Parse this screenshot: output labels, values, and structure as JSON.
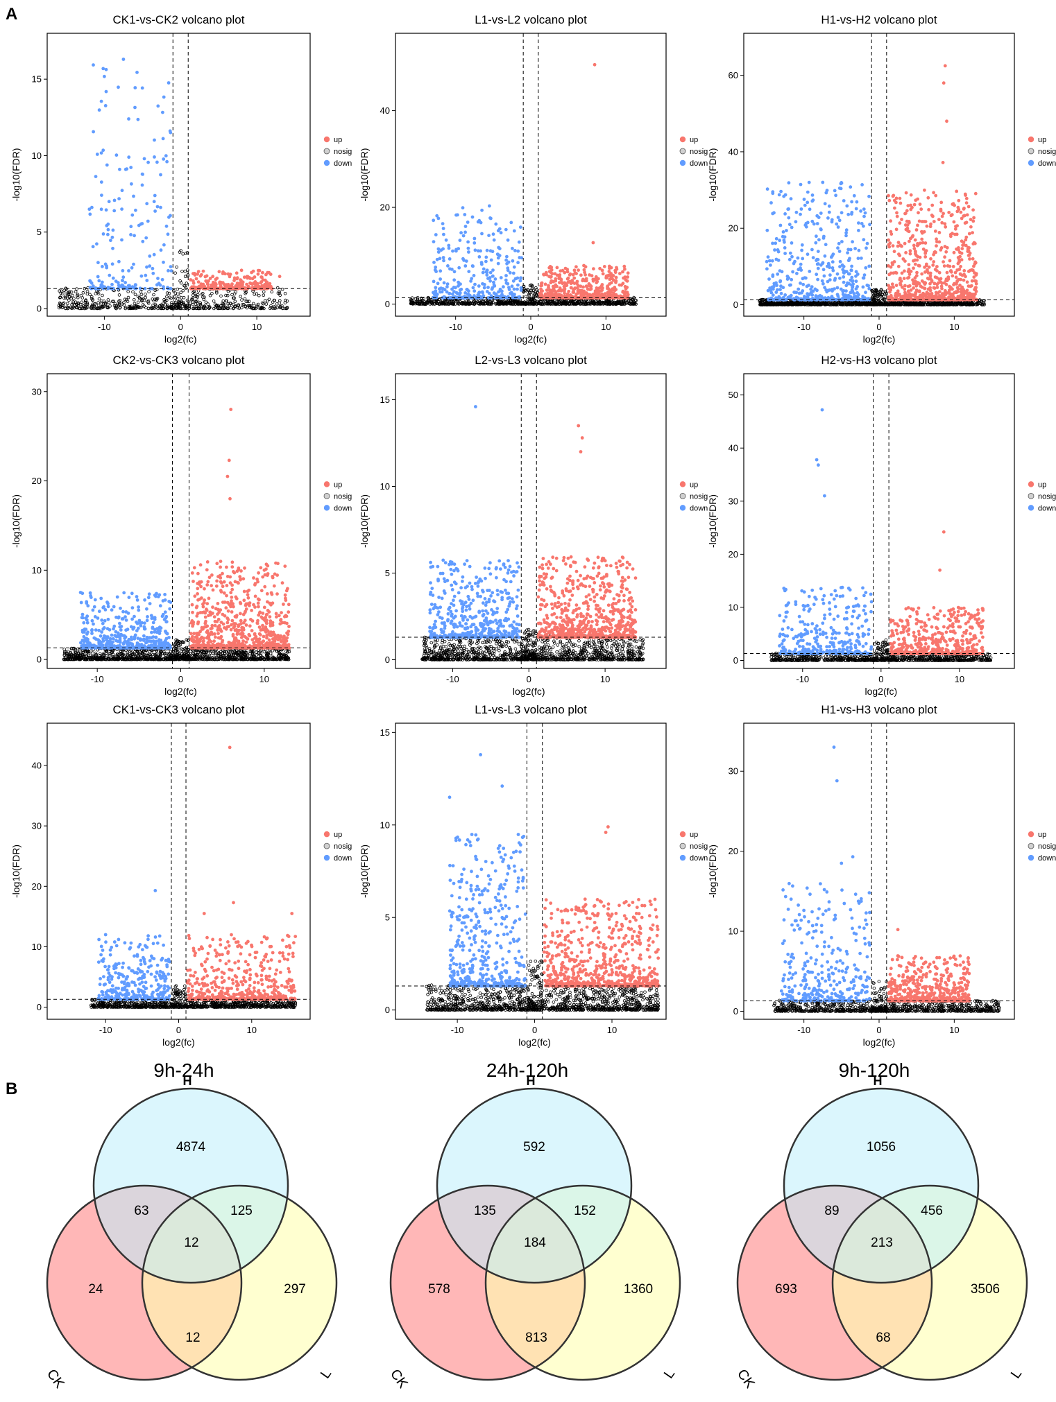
{
  "panel_labels": {
    "a": "A",
    "b": "B"
  },
  "colors": {
    "up": "#f8766d",
    "nosig": "#000000",
    "down": "#619cff",
    "H": "#bdeefc",
    "CK": "#ffb3b3",
    "L": "#ffffb0"
  },
  "chart_data": [
    {
      "type": "scatter",
      "title": "CK1-vs-CK2 volcano plot",
      "xlabel": "log2(fc)",
      "ylabel": "-log10(FDR)",
      "xlim": [
        -17.5,
        17
      ],
      "ylim": [
        -0.5,
        18
      ],
      "xticks": [
        -10,
        0,
        10
      ],
      "yticks": [
        0,
        5,
        10,
        15
      ],
      "x_thresholds": [
        -1,
        1
      ],
      "y_threshold": 1.3,
      "legend": [
        "up",
        "nosig",
        "down"
      ],
      "xrange_dense": [
        -12,
        12
      ],
      "xrange_nosig": [
        -16,
        14
      ],
      "up_max_y": 2.5,
      "down_max_y": 16,
      "density": "sparse",
      "extremes": [
        {
          "g": "down",
          "x": -7.5,
          "y": 16.3
        },
        {
          "g": "down",
          "x": -6.8,
          "y": 12.4
        },
        {
          "g": "down",
          "x": -8,
          "y": 9.1
        },
        {
          "g": "down",
          "x": -7.2,
          "y": 9.1
        },
        {
          "g": "up",
          "x": 8,
          "y": 2.5
        },
        {
          "g": "up",
          "x": 13,
          "y": 2.1
        }
      ]
    },
    {
      "type": "scatter",
      "title": "L1-vs-L2 volcano plot",
      "xlabel": "log2(fc)",
      "ylabel": "-log10(FDR)",
      "xlim": [
        -18,
        18
      ],
      "ylim": [
        -2.5,
        56
      ],
      "xticks": [
        -10,
        0,
        10
      ],
      "yticks": [
        0,
        20,
        40
      ],
      "x_thresholds": [
        -1,
        1
      ],
      "y_threshold": 1.3,
      "legend": [
        "up",
        "nosig",
        "down"
      ],
      "xrange_dense": [
        -13,
        13
      ],
      "xrange_nosig": [
        -16,
        14
      ],
      "up_max_y": 8,
      "down_max_y": 20,
      "density": "medium",
      "extremes": [
        {
          "g": "up",
          "x": 8.5,
          "y": 49.5
        },
        {
          "g": "up",
          "x": 8.3,
          "y": 12.7
        },
        {
          "g": "down",
          "x": -5.5,
          "y": 20.3
        },
        {
          "g": "down",
          "x": -6.5,
          "y": 19.4
        },
        {
          "g": "down",
          "x": -7,
          "y": 17
        }
      ]
    },
    {
      "type": "scatter",
      "title": "H1-vs-H2 volcano plot",
      "xlabel": "log2(fc)",
      "ylabel": "-log10(FDR)",
      "xlim": [
        -18,
        18
      ],
      "ylim": [
        -3,
        71
      ],
      "xticks": [
        -10,
        0,
        10
      ],
      "yticks": [
        0,
        20,
        40,
        60
      ],
      "x_thresholds": [
        -1,
        1
      ],
      "y_threshold": 1.3,
      "legend": [
        "up",
        "nosig",
        "down"
      ],
      "xrange_dense": [
        -15,
        13
      ],
      "xrange_nosig": [
        -16,
        14
      ],
      "up_max_y": 30,
      "down_max_y": 32,
      "density": "dense",
      "extremes": [
        {
          "g": "up",
          "x": 8.8,
          "y": 62.5
        },
        {
          "g": "up",
          "x": 8.6,
          "y": 58
        },
        {
          "g": "up",
          "x": 9,
          "y": 48
        },
        {
          "g": "up",
          "x": 8.5,
          "y": 37.2
        },
        {
          "g": "down",
          "x": -7.5,
          "y": 32
        },
        {
          "g": "down",
          "x": -3.3,
          "y": 28.5
        },
        {
          "g": "down",
          "x": -2,
          "y": 25
        }
      ]
    },
    {
      "type": "scatter",
      "title": "CK2-vs-CK3 volcano plot",
      "xlabel": "log2(fc)",
      "ylabel": "-log10(FDR)",
      "xlim": [
        -16,
        15.5
      ],
      "ylim": [
        -1,
        32
      ],
      "xticks": [
        -10,
        0,
        10
      ],
      "yticks": [
        0,
        10,
        20,
        30
      ],
      "x_thresholds": [
        -1,
        1
      ],
      "y_threshold": 1.3,
      "legend": [
        "up",
        "nosig",
        "down"
      ],
      "xrange_dense": [
        -12,
        13
      ],
      "xrange_nosig": [
        -14,
        13
      ],
      "up_max_y": 11,
      "down_max_y": 7.5,
      "density": "dense",
      "extremes": [
        {
          "g": "up",
          "x": 6,
          "y": 28
        },
        {
          "g": "up",
          "x": 5.8,
          "y": 22.3
        },
        {
          "g": "up",
          "x": 5.6,
          "y": 20.5
        },
        {
          "g": "up",
          "x": 5.9,
          "y": 18
        },
        {
          "g": "down",
          "x": -12,
          "y": 7.5
        },
        {
          "g": "down",
          "x": -3.1,
          "y": 7.2
        }
      ]
    },
    {
      "type": "scatter",
      "title": "L2-vs-L3 volcano plot",
      "xlabel": "log2(fc)",
      "ylabel": "-log10(FDR)",
      "xlim": [
        -17.5,
        18
      ],
      "ylim": [
        -0.5,
        16.5
      ],
      "xticks": [
        -10,
        0,
        10
      ],
      "yticks": [
        0,
        5,
        10,
        15
      ],
      "x_thresholds": [
        -1,
        1
      ],
      "y_threshold": 1.3,
      "legend": [
        "up",
        "nosig",
        "down"
      ],
      "xrange_dense": [
        -13,
        14
      ],
      "xrange_nosig": [
        -14,
        15
      ],
      "up_max_y": 6,
      "down_max_y": 5.8,
      "density": "dense",
      "extremes": [
        {
          "g": "down",
          "x": -7,
          "y": 14.6
        },
        {
          "g": "up",
          "x": 6.5,
          "y": 13.5
        },
        {
          "g": "up",
          "x": 7,
          "y": 12.8
        },
        {
          "g": "up",
          "x": 6.8,
          "y": 12
        }
      ]
    },
    {
      "type": "scatter",
      "title": "H2-vs-H3 volcano plot",
      "xlabel": "log2(fc)",
      "ylabel": "-log10(FDR)",
      "xlim": [
        -17.5,
        17
      ],
      "ylim": [
        -1.5,
        54
      ],
      "xticks": [
        -10,
        0,
        10
      ],
      "yticks": [
        0,
        10,
        20,
        30,
        40,
        50
      ],
      "x_thresholds": [
        -1,
        1
      ],
      "y_threshold": 1.3,
      "legend": [
        "up",
        "nosig",
        "down"
      ],
      "xrange_dense": [
        -13,
        13
      ],
      "xrange_nosig": [
        -14,
        14
      ],
      "up_max_y": 10,
      "down_max_y": 14,
      "density": "medium",
      "extremes": [
        {
          "g": "down",
          "x": -7.5,
          "y": 47.2
        },
        {
          "g": "down",
          "x": -8.2,
          "y": 37.8
        },
        {
          "g": "down",
          "x": -8,
          "y": 36.8
        },
        {
          "g": "down",
          "x": -7.2,
          "y": 31
        },
        {
          "g": "up",
          "x": 8,
          "y": 24.2
        },
        {
          "g": "up",
          "x": 7.5,
          "y": 17
        }
      ]
    },
    {
      "type": "scatter",
      "title": "CK1-vs-CK3 volcano plot",
      "xlabel": "log2(fc)",
      "ylabel": "-log10(FDR)",
      "xlim": [
        -18,
        18
      ],
      "ylim": [
        -2,
        47
      ],
      "xticks": [
        -10,
        0,
        10
      ],
      "yticks": [
        0,
        10,
        20,
        30,
        40
      ],
      "x_thresholds": [
        -1,
        1
      ],
      "y_threshold": 1.3,
      "legend": [
        "up",
        "nosig",
        "down"
      ],
      "xrange_dense": [
        -11,
        16
      ],
      "xrange_nosig": [
        -12,
        16
      ],
      "up_max_y": 12,
      "down_max_y": 12,
      "density": "medium",
      "extremes": [
        {
          "g": "up",
          "x": 7,
          "y": 43
        },
        {
          "g": "down",
          "x": -3.2,
          "y": 19.3
        },
        {
          "g": "up",
          "x": 7.5,
          "y": 17.3
        },
        {
          "g": "up",
          "x": 3.5,
          "y": 15.5
        },
        {
          "g": "up",
          "x": 15.5,
          "y": 15.5
        },
        {
          "g": "down",
          "x": -10,
          "y": 12
        }
      ]
    },
    {
      "type": "scatter",
      "title": "L1-vs-L3 volcano plot",
      "xlabel": "log2(fc)",
      "ylabel": "-log10(FDR)",
      "xlim": [
        -18,
        17
      ],
      "ylim": [
        -0.5,
        15.5
      ],
      "xticks": [
        -10,
        0,
        10
      ],
      "yticks": [
        0,
        5,
        10,
        15
      ],
      "x_thresholds": [
        -1,
        1
      ],
      "y_threshold": 1.3,
      "legend": [
        "up",
        "nosig",
        "down"
      ],
      "xrange_dense": [
        -11,
        16
      ],
      "xrange_nosig": [
        -14,
        16
      ],
      "up_max_y": 6,
      "down_max_y": 9.5,
      "density": "dense",
      "extremes": [
        {
          "g": "down",
          "x": -7,
          "y": 13.8
        },
        {
          "g": "down",
          "x": -4.2,
          "y": 12.1
        },
        {
          "g": "down",
          "x": -11,
          "y": 11.5
        },
        {
          "g": "up",
          "x": 9.5,
          "y": 9.9
        },
        {
          "g": "up",
          "x": 9.2,
          "y": 9.6
        }
      ]
    },
    {
      "type": "scatter",
      "title": "H1-vs-H3 volcano plot",
      "xlabel": "log2(fc)",
      "ylabel": "-log10(FDR)",
      "xlim": [
        -18,
        18
      ],
      "ylim": [
        -1,
        36
      ],
      "xticks": [
        -10,
        0,
        10
      ],
      "yticks": [
        0,
        10,
        20,
        30
      ],
      "x_thresholds": [
        -1,
        1
      ],
      "y_threshold": 1.3,
      "legend": [
        "up",
        "nosig",
        "down"
      ],
      "xrange_dense": [
        -13,
        12
      ],
      "xrange_nosig": [
        -14,
        16
      ],
      "up_max_y": 7,
      "down_max_y": 16,
      "density": "medium",
      "extremes": [
        {
          "g": "down",
          "x": -6,
          "y": 33
        },
        {
          "g": "down",
          "x": -5.6,
          "y": 28.8
        },
        {
          "g": "down",
          "x": -3.5,
          "y": 19.3
        },
        {
          "g": "down",
          "x": -5,
          "y": 18.5
        },
        {
          "g": "up",
          "x": 2.5,
          "y": 10.2
        }
      ]
    }
  ],
  "venn": [
    {
      "title": "9h-24h",
      "labels": {
        "H": "H",
        "CK": "CK",
        "L": "L"
      },
      "values": {
        "H_only": "4874",
        "H_CK": "63",
        "H_L": "125",
        "all": "12",
        "CK_only": "24",
        "L_only": "297",
        "CK_L": "12"
      }
    },
    {
      "title": "24h-120h",
      "labels": {
        "H": "H",
        "CK": "CK",
        "L": "L"
      },
      "values": {
        "H_only": "592",
        "H_CK": "135",
        "H_L": "152",
        "all": "184",
        "CK_only": "578",
        "L_only": "1360",
        "CK_L": "813"
      }
    },
    {
      "title": "9h-120h",
      "labels": {
        "H": "H",
        "CK": "CK",
        "L": "L"
      },
      "values": {
        "H_only": "1056",
        "H_CK": "89",
        "H_L": "456",
        "all": "213",
        "CK_only": "693",
        "L_only": "3506",
        "CK_L": "68"
      }
    }
  ]
}
